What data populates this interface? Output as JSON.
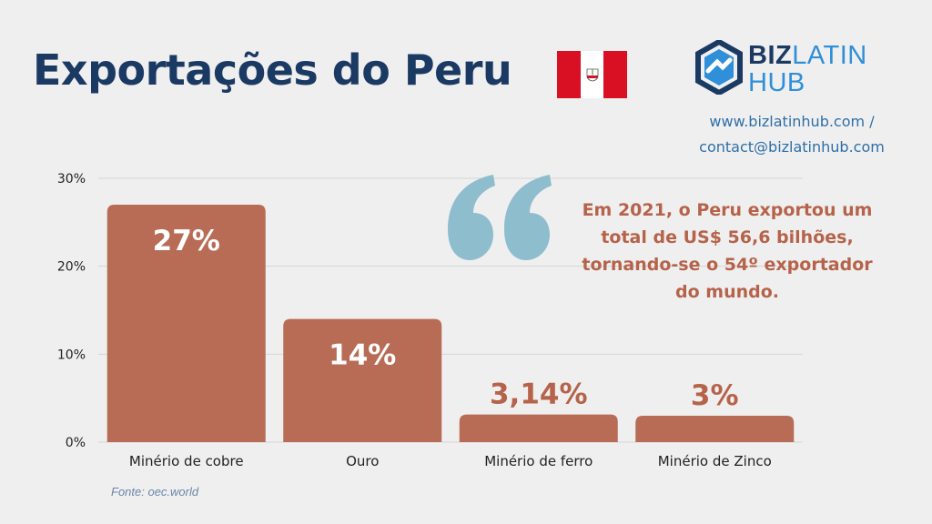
{
  "header": {
    "title": "Exportações do Peru",
    "flag": {
      "icon": "peru-flag-icon",
      "colors": [
        "#d91023",
        "#ffffff"
      ]
    }
  },
  "logo": {
    "part1": "BIZ",
    "part2": "LATIN",
    "part3": "HUB",
    "colors": {
      "dark": "#1b3a63",
      "light": "#2f8fd8"
    }
  },
  "contact": {
    "line1": "www.bizlatinhub.com /",
    "line2": "contact@bizlatinhub.com"
  },
  "quote": {
    "icon": "quotation-mark-icon",
    "lines": [
      "Em 2021, o Peru exportou um",
      "total de US$ 56,6 bilhões,",
      "tornando-se o 54º exportador",
      "do mundo."
    ]
  },
  "source": "Fonte: oec.world",
  "colors": {
    "bar": "#b86c55",
    "value_outside": "#b5634a",
    "title": "#1b3a63",
    "background": "#f0efef"
  },
  "chart_data": {
    "type": "bar",
    "categories": [
      "Minério de cobre",
      "Ouro",
      "Minério de ferro",
      "Minério de Zinco"
    ],
    "values": [
      27,
      14,
      3.14,
      3
    ],
    "value_labels": [
      "27%",
      "14%",
      "3,14%",
      "3%"
    ],
    "yticks": [
      "0%",
      "10%",
      "20%",
      "30%"
    ],
    "ylim": [
      0,
      30
    ],
    "grid": true
  }
}
